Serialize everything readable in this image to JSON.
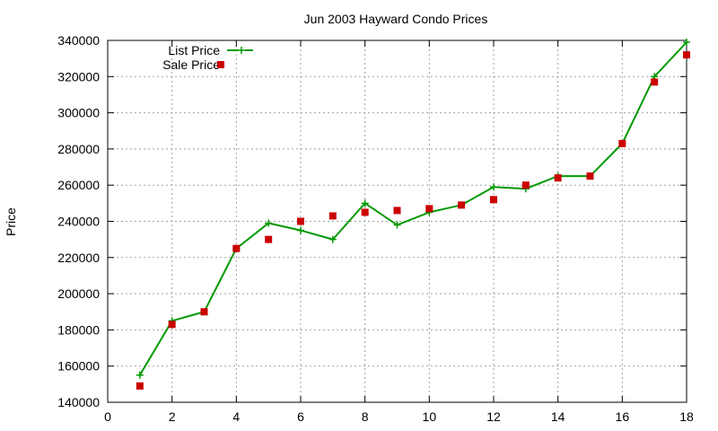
{
  "chart_data": {
    "type": "line",
    "title": "Jun 2003 Hayward Condo Prices",
    "xlabel": "",
    "ylabel": "Price",
    "xlim": [
      0,
      18
    ],
    "ylim": [
      140000,
      340000
    ],
    "xticks": [
      0,
      2,
      4,
      6,
      8,
      10,
      12,
      14,
      16,
      18
    ],
    "yticks": [
      140000,
      160000,
      180000,
      200000,
      220000,
      240000,
      260000,
      280000,
      300000,
      320000,
      340000
    ],
    "grid": true,
    "legend_position": "top-left",
    "series": [
      {
        "name": "List Price",
        "style": "line-points",
        "marker": "plus",
        "color": "#009900",
        "x": [
          1,
          2,
          3,
          4,
          5,
          6,
          7,
          8,
          9,
          10,
          11,
          12,
          13,
          14,
          15,
          16,
          17,
          18
        ],
        "y": [
          155000,
          185000,
          190000,
          225000,
          239000,
          235000,
          230000,
          250000,
          238000,
          245000,
          249000,
          259000,
          258000,
          265000,
          265000,
          283000,
          320000,
          339000
        ]
      },
      {
        "name": "Sale Price",
        "style": "points",
        "marker": "square",
        "color": "#cc0000",
        "x": [
          1,
          2,
          3,
          4,
          5,
          6,
          7,
          8,
          9,
          10,
          11,
          12,
          13,
          14,
          15,
          16,
          17,
          18
        ],
        "y": [
          149000,
          183000,
          190000,
          225000,
          230000,
          240000,
          243000,
          245000,
          246000,
          247000,
          249000,
          252000,
          260000,
          264000,
          265000,
          283000,
          317000,
          332000
        ]
      }
    ]
  }
}
